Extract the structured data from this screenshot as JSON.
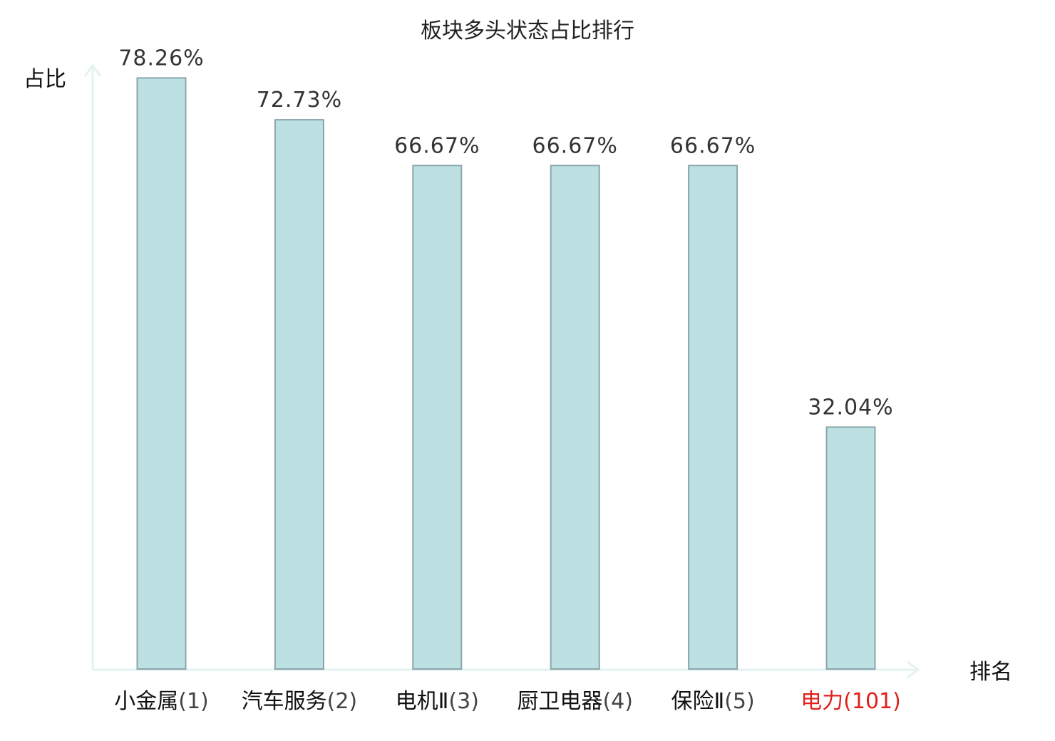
{
  "chart_data": {
    "type": "bar",
    "title": "板块多头状态占比排行",
    "ylabel": "占比",
    "xlabel": "排名",
    "categories": [
      "小金属",
      "汽车服务",
      "电机Ⅱ",
      "厨卫电器",
      "保险Ⅱ",
      "电力"
    ],
    "ranks": [
      "(1)",
      "(2)",
      "(3)",
      "(4)",
      "(5)",
      "(101)"
    ],
    "values": [
      78.26,
      72.73,
      66.67,
      66.67,
      66.67,
      32.04
    ],
    "value_labels": [
      "78.26%",
      "72.73%",
      "66.67%",
      "66.67%",
      "66.67%",
      "32.04%"
    ],
    "highlighted_index": 5,
    "ylim": [
      0,
      80
    ],
    "grid": false,
    "legend": "none"
  },
  "colors": {
    "bar_fill": "#bde1e3",
    "bar_stroke": "#8aa6ab",
    "axis": "#e2f3f1",
    "highlight": "#e0201a"
  }
}
